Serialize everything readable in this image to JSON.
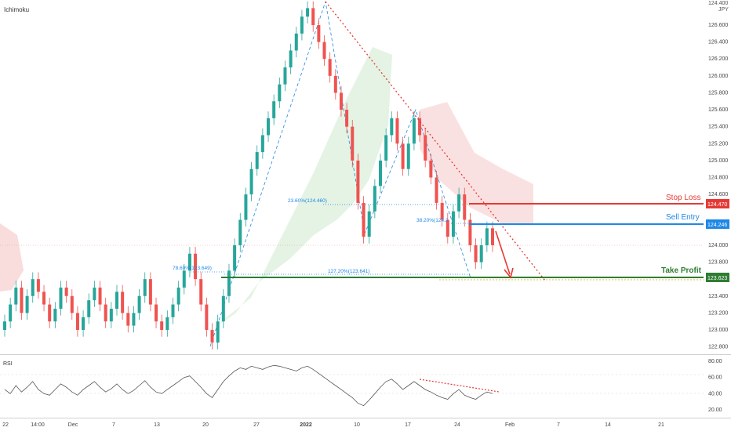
{
  "header": {
    "indicator_name": "Ichimoku",
    "corner_top": "124.400",
    "corner_unit": "JPY"
  },
  "colors": {
    "bull": "#26a69a",
    "bear": "#ef5350",
    "stop_loss": "#e53935",
    "sell_entry": "#1e88e5",
    "take_profit": "#2e7d32",
    "fib": "#1e88e5",
    "trend": "#e53935",
    "rsi": "#555555",
    "cloud_bull": "#a5d6a7",
    "cloud_bear": "#ef9a9a"
  },
  "chart_data": {
    "type": "candlestick",
    "y_axis_ticks": [
      "126.600",
      "126.400",
      "126.200",
      "126.000",
      "125.800",
      "125.600",
      "125.400",
      "125.200",
      "125.000",
      "124.800",
      "124.600",
      "124.000",
      "123.800",
      "123.400",
      "123.200",
      "123.000",
      "122.800"
    ],
    "ylim": [
      122.75,
      126.85
    ],
    "x_axis_ticks": [
      "22",
      "14:00",
      "Dec",
      "7",
      "13",
      "20",
      "27",
      "2022",
      "10",
      "17",
      "24",
      "Feb",
      "7",
      "14",
      "21"
    ],
    "levels": [
      {
        "name": "Stop Loss",
        "price": "124.470",
        "value": 124.47,
        "color": "#e53935"
      },
      {
        "name": "Sell Entry",
        "price": "124.246",
        "value": 124.246,
        "color": "#1e88e5"
      },
      {
        "name": "Take Profit",
        "price": "123.623",
        "value": 123.623,
        "color": "#2e7d32"
      }
    ],
    "fib_labels": [
      {
        "text": "23.60%(124.460)",
        "value": 124.46
      },
      {
        "text": "38.20%(124.2",
        "value": 124.24
      },
      {
        "text": "78.60%(123.649)",
        "value": 123.649
      },
      {
        "text": "127.20%(123.641)",
        "value": 123.641
      }
    ],
    "last_price": 124.0,
    "closes": [
      123.1,
      123.3,
      123.5,
      123.2,
      123.4,
      123.6,
      123.45,
      123.3,
      123.1,
      123.25,
      123.5,
      123.4,
      123.2,
      123.0,
      123.15,
      123.35,
      123.5,
      123.3,
      123.1,
      123.25,
      123.45,
      123.2,
      123.05,
      123.2,
      123.4,
      123.6,
      123.3,
      123.1,
      123.0,
      123.15,
      123.3,
      123.5,
      123.7,
      123.9,
      123.6,
      123.3,
      123.0,
      122.85,
      123.1,
      123.4,
      123.7,
      124.0,
      124.3,
      124.6,
      124.9,
      125.1,
      125.3,
      125.5,
      125.7,
      125.9,
      126.1,
      126.3,
      126.5,
      126.7,
      126.8,
      126.6,
      126.4,
      126.2,
      126.0,
      125.8,
      125.6,
      125.4,
      125.0,
      124.5,
      124.1,
      124.4,
      124.7,
      125.0,
      125.3,
      125.5,
      125.2,
      124.9,
      125.2,
      125.5,
      125.3,
      125.0,
      124.8,
      124.5,
      124.3,
      124.1,
      124.4,
      124.6,
      124.3,
      124.0,
      123.8,
      124.0,
      124.2,
      124.0
    ],
    "rsi": {
      "label": "RSI",
      "ticks": [
        "80.00",
        "60.00",
        "40.00",
        "20.00"
      ],
      "ylim": [
        15,
        85
      ],
      "values": [
        45,
        40,
        50,
        42,
        48,
        55,
        45,
        40,
        38,
        45,
        52,
        48,
        42,
        38,
        45,
        50,
        55,
        48,
        42,
        46,
        52,
        45,
        40,
        44,
        50,
        56,
        48,
        42,
        40,
        45,
        50,
        55,
        60,
        62,
        55,
        48,
        40,
        35,
        45,
        55,
        62,
        68,
        72,
        70,
        74,
        72,
        70,
        73,
        75,
        74,
        72,
        70,
        68,
        72,
        74,
        70,
        65,
        60,
        55,
        50,
        45,
        40,
        35,
        28,
        25,
        32,
        40,
        48,
        55,
        58,
        52,
        45,
        50,
        55,
        50,
        45,
        42,
        38,
        35,
        33,
        40,
        45,
        38,
        35,
        33,
        38,
        42,
        40
      ],
      "trend_labels": []
    }
  }
}
